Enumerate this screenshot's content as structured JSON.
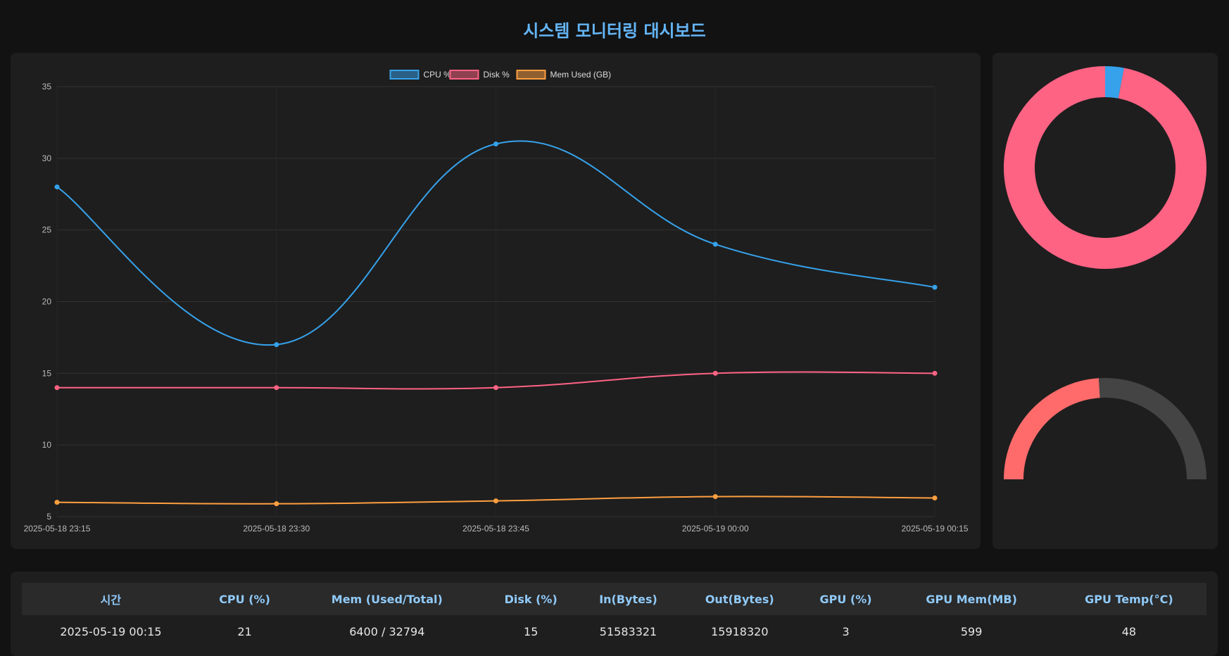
{
  "header": {
    "title": "시스템 모니터링 대시보드"
  },
  "colors": {
    "cpu": "#36a2eb",
    "disk": "#ff6384",
    "mem": "#ff9f40",
    "gauge_fill": "#ff6b6b",
    "gauge_track": "#444444",
    "background": "#121212",
    "panel": "#1e1e1e"
  },
  "chart_data": [
    {
      "type": "line",
      "x": [
        "2025-05-18 23:15",
        "2025-05-18 23:30",
        "2025-05-18 23:45",
        "2025-05-19 00:00",
        "2025-05-19 00:15"
      ],
      "series": [
        {
          "name": "CPU %",
          "values": [
            28,
            17,
            31,
            24,
            21
          ]
        },
        {
          "name": "Disk %",
          "values": [
            14,
            14,
            14,
            15,
            15
          ]
        },
        {
          "name": "Mem Used (GB)",
          "values": [
            6.0,
            5.9,
            6.1,
            6.4,
            6.3
          ]
        }
      ],
      "yticks": [
        "5",
        "10",
        "15",
        "20",
        "25",
        "30",
        "35"
      ],
      "ylim": [
        5,
        35
      ],
      "legend": "top-center",
      "grid": true
    },
    {
      "type": "pie",
      "donut": true,
      "values": [
        3,
        97
      ],
      "colors": [
        "#36a2eb",
        "#ff6384"
      ]
    },
    {
      "type": "pie",
      "half_doughnut_gauge": true,
      "value": 48,
      "max": 100,
      "colors": [
        "#ff6b6b",
        "#444444"
      ]
    }
  ],
  "table": {
    "headers": [
      "시간",
      "CPU (%)",
      "Mem (Used/Total)",
      "Disk (%)",
      "In(Bytes)",
      "Out(Bytes)",
      "GPU (%)",
      "GPU Mem(MB)",
      "GPU Temp(°C)"
    ],
    "rows": [
      [
        "2025-05-19 00:15",
        "21",
        "6400 / 32794",
        "15",
        "51583321",
        "15918320",
        "3",
        "599",
        "48"
      ]
    ]
  }
}
